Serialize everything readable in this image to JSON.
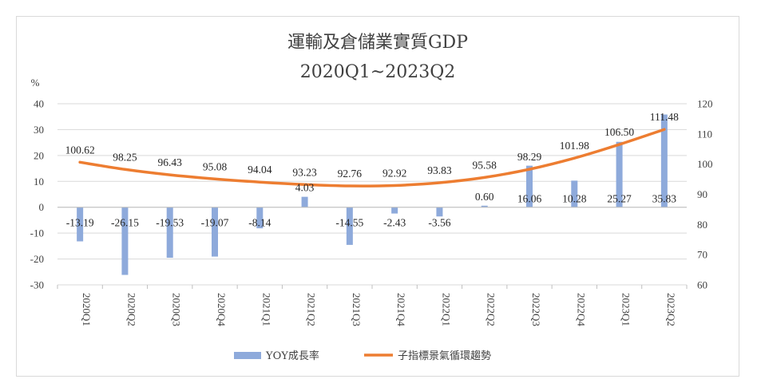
{
  "chart_data": {
    "type": "bar",
    "title": "運輸及倉儲業實質GDP",
    "subtitle": "2020Q1~2023Q2",
    "ylabel": "%",
    "y2label": "",
    "xlabel": "",
    "categories": [
      "2020Q1",
      "2020Q2",
      "2020Q3",
      "2020Q4",
      "2021Q1",
      "2021Q2",
      "2021Q3",
      "2021Q4",
      "2022Q1",
      "2022Q2",
      "2022Q3",
      "2022Q4",
      "2023Q1",
      "2023Q2"
    ],
    "ylim": [
      -30,
      40
    ],
    "yticks": [
      -30,
      -20,
      -10,
      0,
      10,
      20,
      30,
      40
    ],
    "y2lim": [
      60,
      120
    ],
    "y2ticks": [
      60,
      70,
      80,
      90,
      100,
      110,
      120
    ],
    "series": [
      {
        "name": "YOY成長率",
        "kind": "bar",
        "axis": "left",
        "color": "#8eaadb",
        "values": [
          -13.19,
          -26.15,
          -19.53,
          -19.07,
          -8.14,
          4.03,
          -14.55,
          -2.43,
          -3.56,
          0.6,
          16.06,
          10.28,
          25.27,
          35.83
        ],
        "labels": [
          "-13.19",
          "-26.15",
          "-19.53",
          "-19.07",
          "-8.14",
          "4.03",
          "-14.55",
          "-2.43",
          "-3.56",
          "0.60",
          "16.06",
          "10.28",
          "25.27",
          "35.83"
        ]
      },
      {
        "name": "子指標景氣循環趨勢",
        "kind": "line",
        "axis": "right",
        "color": "#ed7d31",
        "values": [
          100.62,
          98.25,
          96.43,
          95.08,
          94.04,
          93.23,
          92.76,
          92.92,
          93.83,
          95.58,
          98.29,
          101.98,
          106.5,
          111.48
        ],
        "labels": [
          "100.62",
          "98.25",
          "96.43",
          "95.08",
          "94.04",
          "93.23",
          "92.76",
          "92.92",
          "93.83",
          "95.58",
          "98.29",
          "101.98",
          "106.50",
          "111.48"
        ]
      }
    ],
    "grid": true,
    "legend": "bottom"
  }
}
